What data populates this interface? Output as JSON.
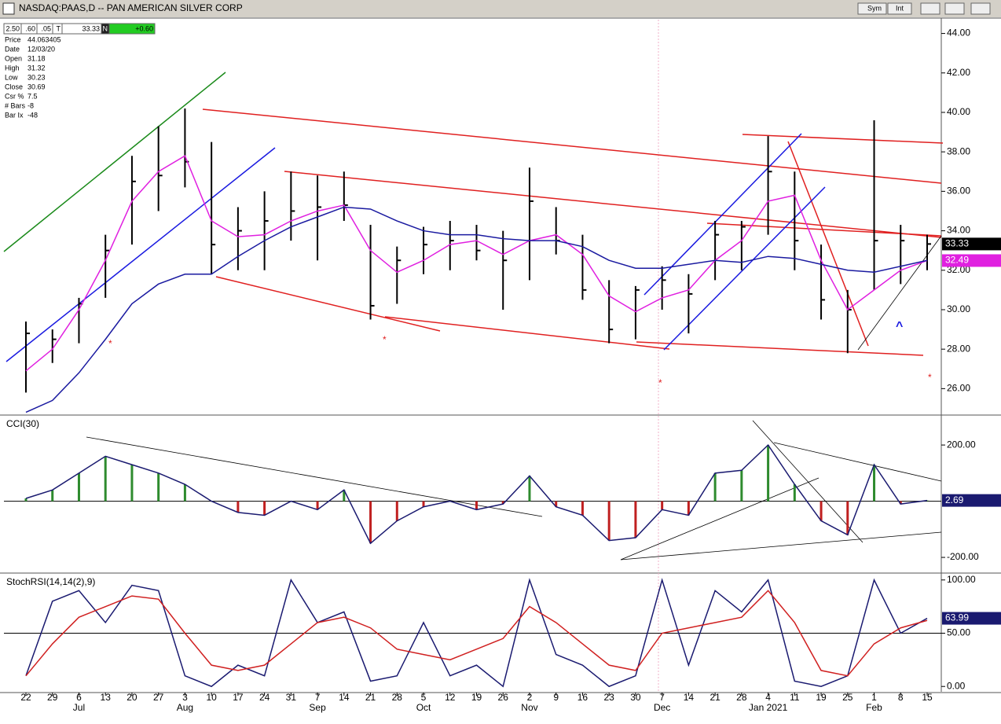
{
  "header": {
    "title": "NASDAQ:PAAS,D -- PAN AMERICAN SILVER CORP",
    "buttons": [
      "Sym",
      "Int"
    ]
  },
  "toolbar": [
    "2.50",
    ".60",
    ".05",
    "T",
    "33.33",
    "N",
    "+0.60"
  ],
  "info": [
    [
      "Price",
      "44.063405"
    ],
    [
      "Date",
      "12/03/20"
    ],
    [
      "Open",
      "31.18"
    ],
    [
      "High",
      "31.32"
    ],
    [
      "Low",
      "30.23"
    ],
    [
      "Close",
      "30.69"
    ],
    [
      "Csr %",
      "7.5"
    ],
    [
      "# Bars",
      "-8"
    ],
    [
      "Bar Ix",
      "-48"
    ]
  ],
  "annotations": [
    "^"
  ],
  "chart_data": [
    {
      "type": "ohlc",
      "categories": [
        "22",
        "29",
        "6",
        "13",
        "20",
        "27",
        "3",
        "10",
        "17",
        "24",
        "31",
        "7",
        "14",
        "21",
        "28",
        "5",
        "12",
        "19",
        "26",
        "2",
        "9",
        "16",
        "23",
        "30",
        "7",
        "14",
        "21",
        "28",
        "4",
        "11",
        "19",
        "25",
        "1",
        "8",
        "15"
      ],
      "month_labels": [
        null,
        null,
        "Jul",
        null,
        null,
        null,
        "Aug",
        null,
        null,
        null,
        null,
        "Sep",
        null,
        null,
        null,
        "Oct",
        null,
        null,
        null,
        "Nov",
        null,
        null,
        null,
        null,
        "Dec",
        null,
        null,
        null,
        "Jan 2021",
        null,
        null,
        null,
        "Feb",
        null,
        null
      ],
      "high": [
        29.4,
        29.0,
        30.6,
        33.8,
        37.8,
        39.3,
        40.2,
        38.5,
        35.2,
        36.0,
        37.0,
        36.8,
        37.0,
        34.3,
        33.2,
        34.2,
        34.5,
        34.3,
        34.0,
        37.2,
        35.2,
        33.8,
        31.5,
        31.2,
        32.2,
        31.8,
        34.5,
        34.5,
        38.8,
        37.0,
        33.3,
        31.0,
        39.6,
        34.3,
        33.8
      ],
      "low": [
        25.8,
        27.3,
        28.3,
        30.6,
        33.3,
        35.0,
        36.2,
        31.8,
        32.0,
        32.0,
        33.5,
        32.5,
        34.5,
        29.5,
        30.3,
        31.8,
        32.0,
        32.5,
        30.0,
        31.5,
        32.8,
        30.5,
        28.3,
        28.5,
        30.0,
        28.8,
        31.5,
        32.0,
        33.8,
        32.0,
        29.5,
        27.8,
        31.0,
        31.3,
        32.0
      ],
      "close": [
        28.8,
        28.5,
        30.3,
        33.0,
        36.5,
        36.8,
        37.5,
        33.3,
        34.0,
        34.5,
        35.0,
        35.2,
        35.3,
        30.2,
        32.5,
        33.3,
        33.5,
        33.0,
        32.5,
        35.5,
        33.5,
        31.0,
        29.0,
        31.0,
        31.5,
        30.8,
        33.8,
        34.2,
        37.0,
        33.5,
        30.5,
        30.0,
        33.5,
        33.5,
        33.33
      ],
      "bar_color": "#000000",
      "series": [
        {
          "name": "MA fast",
          "color": "#e020e0",
          "values": [
            26.9,
            28.0,
            30.0,
            32.5,
            35.5,
            37.0,
            37.8,
            34.5,
            33.7,
            33.8,
            34.5,
            35.0,
            35.3,
            33.0,
            31.9,
            32.5,
            33.3,
            33.5,
            32.8,
            33.5,
            33.8,
            32.8,
            30.7,
            29.9,
            30.6,
            31.0,
            32.5,
            33.5,
            35.5,
            35.8,
            32.5,
            30.0,
            31.0,
            32.0,
            32.49
          ]
        },
        {
          "name": "MA slow",
          "color": "#1a1aa0",
          "values": [
            24.8,
            25.4,
            26.8,
            28.5,
            30.3,
            31.3,
            31.8,
            31.8,
            32.7,
            33.5,
            34.2,
            34.7,
            35.2,
            35.1,
            34.5,
            34.0,
            33.8,
            33.8,
            33.6,
            33.5,
            33.5,
            33.2,
            32.5,
            32.1,
            32.1,
            32.3,
            32.5,
            32.4,
            32.7,
            32.6,
            32.3,
            32.0,
            31.9,
            32.2,
            32.5
          ]
        }
      ],
      "ylim": [
        24.7,
        44.7
      ],
      "yticks": [
        {
          "value": 26,
          "label": "26.00"
        },
        {
          "value": 28,
          "label": "28.00"
        },
        {
          "value": 30,
          "label": "30.00"
        },
        {
          "value": 32,
          "label": "32.00"
        },
        {
          "value": 34,
          "label": "34.00"
        },
        {
          "value": 36,
          "label": "36.00"
        },
        {
          "value": 38,
          "label": "38.00"
        },
        {
          "value": 40,
          "label": "40.00"
        },
        {
          "value": 42,
          "label": "42.00"
        },
        {
          "value": 44,
          "label": "44.00"
        }
      ]
    },
    {
      "type": "cci",
      "title": "CCI(30)",
      "values": [
        10,
        40,
        100,
        160,
        130,
        100,
        60,
        0,
        -40,
        -50,
        0,
        -30,
        40,
        -150,
        -70,
        -20,
        0,
        -30,
        -10,
        90,
        -20,
        -50,
        -140,
        -130,
        -30,
        -50,
        100,
        110,
        200,
        60,
        -70,
        -120,
        130,
        -10,
        2.69
      ],
      "positive_color": "#2e8b2e",
      "negative_color": "#c02020",
      "line_color": "#1a1a70",
      "ylim": [
        -253,
        301
      ],
      "yticks": [
        {
          "value": -200,
          "label": "-200.00"
        },
        {
          "value": 200,
          "label": "200.00"
        }
      ]
    },
    {
      "type": "line",
      "title": "StochRSI(14,14(2),9)",
      "series": [
        {
          "name": "StochRSI",
          "color": "#1a1a70",
          "values": [
            10,
            80,
            90,
            60,
            95,
            90,
            10,
            0,
            20,
            10,
            100,
            60,
            70,
            5,
            10,
            60,
            10,
            20,
            0,
            100,
            30,
            20,
            0,
            10,
            100,
            20,
            90,
            70,
            100,
            5,
            0,
            10,
            100,
            50,
            63.99
          ]
        },
        {
          "name": "Signal",
          "color": "#d02020",
          "values": [
            10,
            40,
            65,
            75,
            85,
            82,
            50,
            20,
            15,
            20,
            40,
            60,
            65,
            55,
            35,
            30,
            25,
            35,
            45,
            75,
            60,
            40,
            20,
            15,
            50,
            55,
            60,
            65,
            90,
            60,
            15,
            10,
            40,
            55,
            62
          ]
        }
      ],
      "ylim": [
        -5,
        105
      ],
      "yticks": [
        {
          "value": 0,
          "label": "0.00"
        },
        {
          "value": 50,
          "label": "50.00"
        },
        {
          "value": 100,
          "label": "100.00"
        }
      ]
    }
  ]
}
